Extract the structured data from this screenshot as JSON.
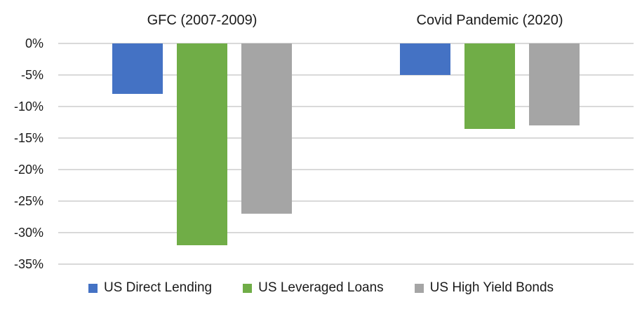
{
  "chart_data": {
    "type": "bar",
    "title": "",
    "categories": [
      "GFC (2007-2009)",
      "Covid Pandemic (2020)"
    ],
    "series": [
      {
        "name": "US Direct Lending",
        "color": "#4472C4",
        "values": [
          -8,
          -5
        ]
      },
      {
        "name": "US Leveraged Loans",
        "color": "#70AD47",
        "values": [
          -32,
          -13.5
        ]
      },
      {
        "name": "US High Yield Bonds",
        "color": "#A5A5A5",
        "values": [
          -27,
          -13
        ]
      }
    ],
    "unit": "%",
    "y_ticks": [
      {
        "label": "0%",
        "value": 0
      },
      {
        "label": "-5%",
        "value": -5
      },
      {
        "label": "-10%",
        "value": -10
      },
      {
        "label": "-15%",
        "value": -15
      },
      {
        "label": "-20%",
        "value": -20
      },
      {
        "label": "-25%",
        "value": -25
      },
      {
        "label": "-30%",
        "value": -30
      },
      {
        "label": "-35%",
        "value": -35
      }
    ],
    "ylim": [
      -35,
      0
    ],
    "grid": true,
    "gridline_color": "#D9D9D9",
    "legend_position": "bottom"
  }
}
